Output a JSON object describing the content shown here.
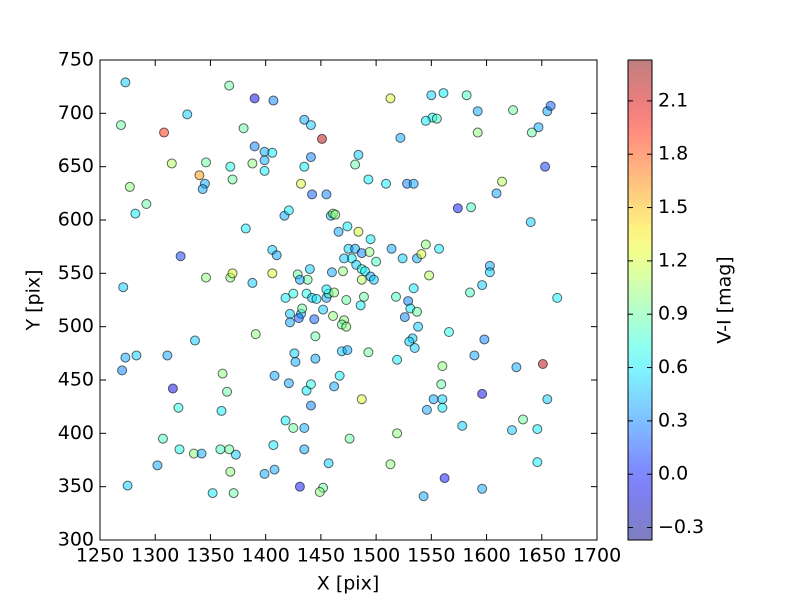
{
  "chart_data": {
    "type": "scatter",
    "x_label": "X [pix]",
    "y_label": "Y [pix]",
    "colorbar_label": "V-I [mag]",
    "colormap": "jet",
    "alpha": 0.5,
    "xlim": [
      1250,
      1700
    ],
    "xticks": [
      1250,
      1300,
      1350,
      1400,
      1450,
      1500,
      1550,
      1600,
      1650,
      1700
    ],
    "ylim": [
      300,
      750
    ],
    "yticks": [
      300,
      350,
      400,
      450,
      500,
      550,
      600,
      650,
      700,
      750
    ],
    "clim": [
      -0.37,
      2.33
    ],
    "cticks": [
      {
        "value": -0.3,
        "label": "−0.3"
      },
      {
        "value": 0,
        "label": "0.0"
      },
      0.3,
      0.6,
      0.9,
      1.2,
      1.5,
      1.8,
      2.1
    ],
    "x": [
      1273,
      1269,
      1308,
      1329,
      1367,
      1390,
      1407,
      1380,
      1390,
      1399,
      1399,
      1406,
      1399,
      1388,
      1368,
      1370,
      1346,
      1315,
      1340,
      1345,
      1343,
      1277,
      1282,
      1292,
      1382,
      1435,
      1441,
      1451,
      1441,
      1432,
      1435,
      1442,
      1455,
      1481,
      1484,
      1493,
      1509,
      1522,
      1513,
      1550,
      1561,
      1582,
      1592,
      1624,
      1655,
      1658,
      1647,
      1641,
      1592,
      1551,
      1555,
      1545,
      1574,
      1586,
      1609,
      1614,
      1653,
      1640,
      1528,
      1534,
      1459,
      1461,
      1463,
      1474,
      1466,
      1484,
      1495,
      1475,
      1481,
      1487,
      1494,
      1478,
      1471,
      1482,
      1500,
      1487,
      1490,
      1495,
      1487,
      1498,
      1514,
      1524,
      1537,
      1541,
      1545,
      1557,
      1548,
      1603,
      1603,
      1596,
      1585,
      1664,
      1534,
      1518,
      1529,
      1531,
      1537,
      1526,
      1538,
      1533,
      1530,
      1535,
      1519,
      1566,
      1598,
      1589,
      1560,
      1559,
      1552,
      1560,
      1560,
      1546,
      1596,
      1627,
      1651,
      1655,
      1578,
      1623,
      1633,
      1646,
      1646,
      1596,
      1562,
      1543,
      1519,
      1513,
      1487,
      1476,
      1457,
      1452,
      1449,
      1435,
      1435,
      1425,
      1431,
      1418,
      1407,
      1408,
      1399,
      1373,
      1367,
      1368,
      1371,
      1359,
      1352,
      1335,
      1342,
      1322,
      1307,
      1302,
      1275,
      1321,
      1360,
      1365,
      1361,
      1316,
      1311,
      1283,
      1273,
      1270,
      1271,
      1336,
      1391,
      1408,
      1421,
      1427,
      1426,
      1437,
      1441,
      1445,
      1441,
      1462,
      1467,
      1469,
      1474,
      1493,
      1388,
      1368,
      1370,
      1346,
      1323,
      1406,
      1406,
      1410,
      1417,
      1421,
      1418,
      1422,
      1422,
      1425,
      1429,
      1432,
      1430,
      1433,
      1437,
      1440,
      1442,
      1444,
      1446,
      1452,
      1455,
      1445,
      1457,
      1455,
      1460,
      1461,
      1471,
      1469,
      1473,
      1462,
      1473,
      1486,
      1489,
      1470,
      1438,
      1431
    ],
    "y": [
      729,
      689,
      682,
      699,
      726,
      714,
      712,
      686,
      669,
      664,
      656,
      663,
      646,
      653,
      650,
      638,
      654,
      653,
      642,
      634,
      629,
      631,
      606,
      615,
      592,
      694,
      689,
      676,
      659,
      634,
      650,
      624,
      624,
      652,
      661,
      638,
      634,
      677,
      714,
      717,
      719,
      717,
      702,
      703,
      702,
      707,
      687,
      682,
      682,
      696,
      695,
      693,
      611,
      612,
      625,
      636,
      650,
      598,
      634,
      634,
      604,
      606,
      605,
      594,
      589,
      589,
      582,
      573,
      573,
      569,
      570,
      564,
      564,
      558,
      561,
      554,
      552,
      547,
      544,
      544,
      573,
      564,
      564,
      568,
      577,
      573,
      548,
      557,
      551,
      539,
      532,
      527,
      536,
      528,
      524,
      517,
      514,
      509,
      500,
      489,
      486,
      480,
      469,
      495,
      488,
      473,
      463,
      446,
      432,
      432,
      424,
      422,
      437,
      462,
      465,
      432,
      407,
      403,
      413,
      404,
      373,
      348,
      358,
      341,
      400,
      371,
      432,
      395,
      372,
      349,
      345,
      405,
      385,
      405,
      350,
      412,
      389,
      366,
      362,
      380,
      385,
      364,
      344,
      385,
      344,
      381,
      381,
      385,
      395,
      370,
      351,
      424,
      421,
      439,
      456,
      442,
      473,
      473,
      471,
      459,
      537,
      487,
      493,
      454,
      447,
      467,
      475,
      440,
      446,
      470,
      426,
      444,
      454,
      477,
      478,
      476,
      541,
      546,
      550,
      546,
      566,
      550,
      572,
      567,
      604,
      609,
      527,
      512,
      504,
      531,
      549,
      512,
      508,
      517,
      531,
      554,
      527,
      507,
      526,
      516,
      527,
      491,
      531,
      535,
      551,
      510,
      506,
      502,
      500,
      532,
      525,
      520,
      528,
      552,
      544,
      544
    ],
    "c": [
      0.5,
      0.9,
      1.9,
      0.5,
      0.9,
      -0.1,
      0.3,
      0.9,
      0.3,
      0.4,
      0.4,
      0.6,
      0.6,
      1.0,
      0.7,
      0.9,
      0.9,
      1.1,
      1.6,
      0.4,
      0.4,
      1.0,
      0.6,
      0.9,
      0.6,
      0.4,
      0.5,
      2.2,
      0.3,
      1.2,
      0.6,
      0.2,
      0.3,
      0.9,
      0.5,
      0.6,
      0.6,
      0.4,
      1.2,
      0.5,
      0.6,
      0.8,
      0.4,
      0.9,
      0.4,
      0.2,
      0.4,
      0.9,
      1.0,
      0.6,
      0.8,
      0.6,
      0.0,
      0.8,
      0.4,
      1.1,
      0.1,
      0.5,
      0.3,
      0.4,
      0.5,
      1.0,
      1.0,
      0.6,
      0.4,
      1.2,
      0.6,
      0.5,
      0.4,
      0.3,
      1.0,
      0.6,
      0.5,
      0.5,
      0.8,
      0.7,
      0.6,
      0.4,
      1.1,
      0.5,
      0.4,
      0.5,
      0.4,
      1.2,
      1.0,
      0.6,
      1.1,
      0.4,
      0.5,
      0.5,
      0.8,
      0.6,
      0.6,
      0.8,
      0.3,
      0.6,
      0.9,
      0.3,
      0.5,
      0.5,
      0.5,
      0.5,
      0.6,
      0.7,
      0.3,
      0.4,
      1.0,
      0.9,
      0.4,
      0.5,
      0.6,
      0.4,
      -0.1,
      0.4,
      2.2,
      0.5,
      0.5,
      0.5,
      0.9,
      0.6,
      0.6,
      0.4,
      0.0,
      0.4,
      1.0,
      1.0,
      1.2,
      0.9,
      0.5,
      0.9,
      1.0,
      0.4,
      0.4,
      0.9,
      0.0,
      0.6,
      0.6,
      0.4,
      0.4,
      0.5,
      0.9,
      1.0,
      0.9,
      0.8,
      0.6,
      1.0,
      0.4,
      0.7,
      0.8,
      0.4,
      0.5,
      0.7,
      0.6,
      0.9,
      1.0,
      -0.1,
      0.4,
      0.5,
      0.4,
      0.3,
      0.5,
      0.5,
      1.0,
      0.4,
      0.4,
      0.4,
      0.5,
      0.6,
      0.7,
      0.4,
      0.3,
      0.4,
      0.6,
      0.5,
      0.4,
      0.9,
      0.5,
      1.0,
      1.2,
      1.0,
      0.1,
      1.2,
      0.5,
      0.4,
      0.4,
      0.6,
      0.6,
      0.5,
      0.4,
      0.7,
      0.9,
      0.5,
      0.2,
      0.9,
      0.7,
      0.5,
      0.5,
      0.2,
      0.6,
      0.5,
      0.4,
      0.9,
      0.8,
      0.6,
      0.4,
      1.0,
      1.0,
      0.9,
      1.0,
      1.0,
      0.9,
      0.6,
      0.9,
      1.0,
      0.9,
      0.4
    ]
  }
}
